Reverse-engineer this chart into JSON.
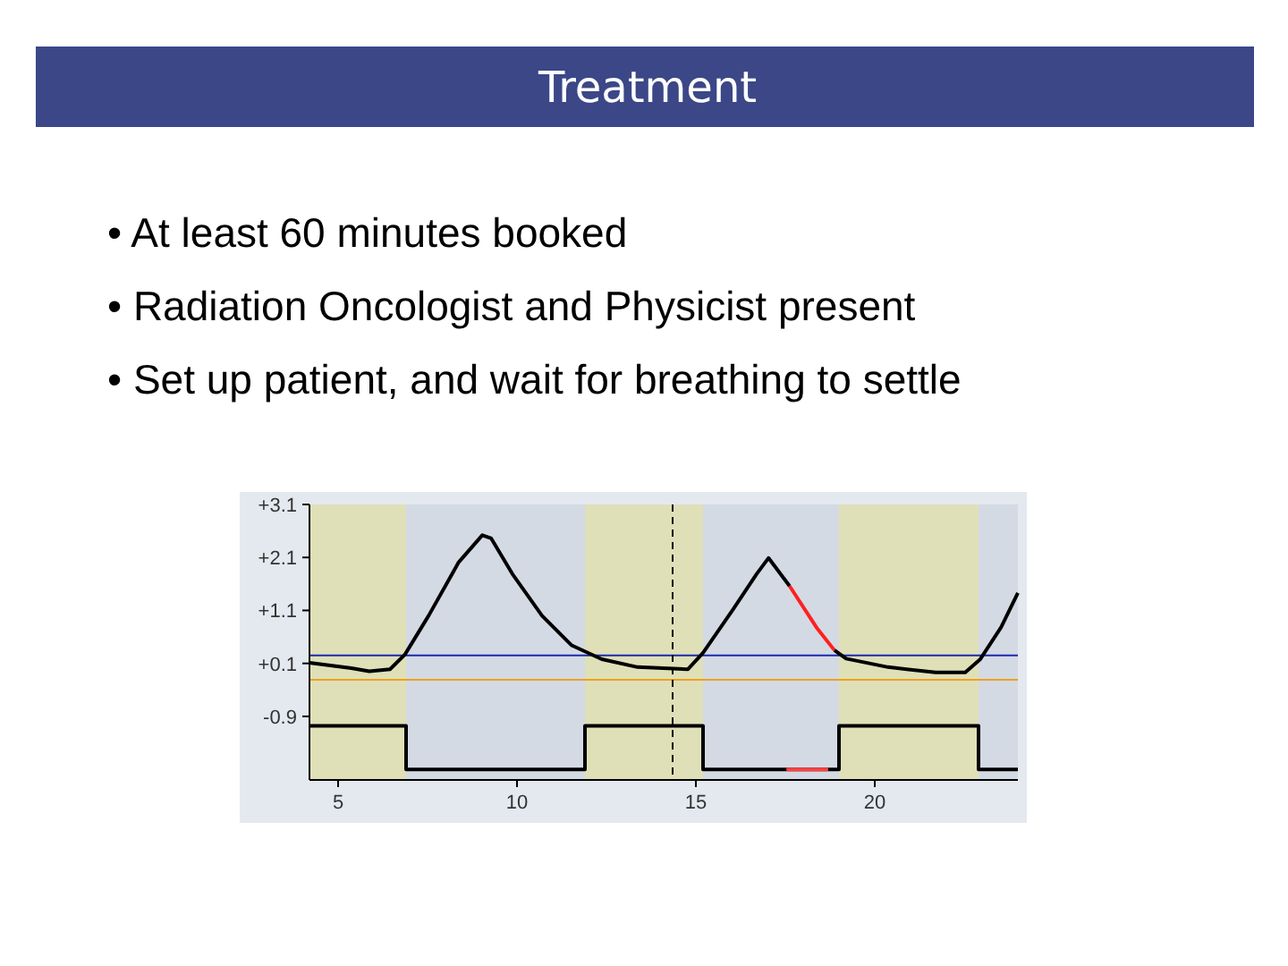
{
  "chart_data": {
    "type": "line",
    "title": "Treatment",
    "annotations": [
      "• At least 60 minutes booked",
      "• Radiation Oncologist and Physicist present",
      "• Set up patient, and wait for breathing to settle"
    ],
    "xlim": [
      4.2,
      24.0
    ],
    "xticks": [
      5,
      10,
      15,
      20
    ],
    "ylim": [
      -2.1,
      3.1
    ],
    "yticks": [
      {
        "value": 3.1,
        "label": "+3.1"
      },
      {
        "value": 2.1,
        "label": "+2.1"
      },
      {
        "value": 1.1,
        "label": "+1.1"
      },
      {
        "value": 0.1,
        "label": "+0.1"
      },
      {
        "value": -0.9,
        "label": "-0.9"
      }
    ],
    "grid": false,
    "line_style": "solid",
    "marker": "none",
    "series": [
      {
        "color": "#000000",
        "x": [
          4.2,
          5.37,
          5.87,
          6.45,
          6.87,
          7.53,
          8.37,
          9.03,
          9.28,
          9.87,
          10.7,
          11.53,
          12.37,
          13.37,
          14.78,
          15.2,
          16.03,
          16.7,
          17.03,
          17.62,
          18.37,
          18.87,
          19.2,
          20.37,
          21.7,
          22.53,
          22.95,
          23.53,
          24.0
        ],
        "values": [
          0.11,
          0.01,
          -0.05,
          -0.01,
          0.27,
          1.0,
          2.01,
          2.52,
          2.46,
          1.79,
          1.0,
          0.44,
          0.18,
          0.03,
          -0.01,
          0.3,
          1.11,
          1.79,
          2.09,
          1.56,
          null,
          0.35,
          0.19,
          0.03,
          -0.07,
          -0.07,
          0.18,
          0.78,
          1.43
        ]
      },
      {
        "type": "line",
        "color": "#ff2020",
        "x": [
          17.62,
          18.37,
          18.87
        ],
        "values": [
          1.56,
          0.78,
          0.35
        ]
      },
      {
        "type": "step",
        "color": "#000000",
        "x": [
          4.2,
          6.9,
          11.9,
          15.2,
          19.0,
          22.9,
          24.0
        ],
        "values": [
          -1.08,
          -1.9,
          -1.08,
          -1.9,
          -1.08,
          -1.9,
          -1.9
        ]
      },
      {
        "type": "line",
        "color": "#ff4040",
        "x": [
          17.53,
          18.7
        ],
        "values": [
          -1.9,
          -1.9
        ]
      }
    ],
    "bands": [
      {
        "axis": "x",
        "from": 4.2,
        "to": 6.9,
        "color": "#dfe0b8"
      },
      {
        "axis": "x",
        "from": 11.9,
        "to": 15.2,
        "color": "#dfe0b8"
      },
      {
        "axis": "x",
        "from": 19.0,
        "to": 22.9,
        "color": "#dfe0b8"
      }
    ],
    "ref_lines": [
      {
        "axis": "y",
        "value": 0.25,
        "color": "#1a2ab0"
      },
      {
        "axis": "y",
        "value": -0.21,
        "color": "#f0a020"
      },
      {
        "axis": "x",
        "value": 14.35,
        "color": "#000000",
        "line_style": "dashed"
      }
    ]
  }
}
